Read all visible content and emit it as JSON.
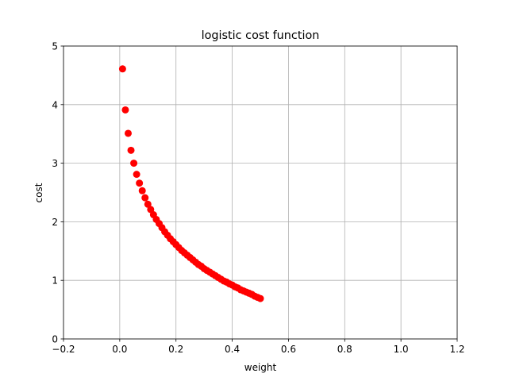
{
  "chart_data": {
    "type": "scatter",
    "title": "logistic cost function",
    "xlabel": "weight",
    "ylabel": "cost",
    "xlim": [
      -0.2,
      1.2
    ],
    "ylim": [
      0,
      5
    ],
    "xticks": [
      -0.2,
      0.0,
      0.2,
      0.4,
      0.6,
      0.8,
      1.0,
      1.2
    ],
    "xtick_labels": [
      "−0.2",
      "0.0",
      "0.2",
      "0.4",
      "0.6",
      "0.8",
      "1.0",
      "1.2"
    ],
    "yticks": [
      0,
      1,
      2,
      3,
      4,
      5
    ],
    "ytick_labels": [
      "0",
      "1",
      "2",
      "3",
      "4",
      "5"
    ],
    "grid": true,
    "marker_color": "#ff0000",
    "series": [
      {
        "marker": "circle",
        "x": [
          0.01,
          0.02,
          0.03,
          0.04,
          0.05,
          0.06,
          0.07,
          0.08,
          0.09,
          0.1,
          0.11,
          0.12,
          0.13,
          0.14,
          0.15,
          0.16,
          0.17,
          0.18,
          0.19,
          0.2,
          0.21,
          0.22,
          0.23,
          0.24,
          0.25,
          0.26,
          0.27,
          0.28,
          0.29,
          0.3,
          0.31,
          0.32,
          0.33,
          0.34,
          0.35,
          0.36,
          0.37,
          0.38,
          0.39,
          0.4,
          0.41,
          0.42,
          0.43,
          0.44,
          0.45,
          0.46,
          0.47,
          0.48,
          0.49,
          0.5
        ],
        "y": [
          4.61,
          3.91,
          3.51,
          3.22,
          3.0,
          2.81,
          2.66,
          2.53,
          2.41,
          2.3,
          2.21,
          2.12,
          2.04,
          1.97,
          1.9,
          1.83,
          1.77,
          1.71,
          1.66,
          1.61,
          1.56,
          1.51,
          1.47,
          1.43,
          1.39,
          1.35,
          1.31,
          1.27,
          1.24,
          1.2,
          1.17,
          1.14,
          1.11,
          1.08,
          1.05,
          1.02,
          0.99,
          0.97,
          0.94,
          0.92,
          0.89,
          0.87,
          0.84,
          0.82,
          0.8,
          0.78,
          0.76,
          0.73,
          0.71,
          0.69
        ]
      }
    ]
  }
}
